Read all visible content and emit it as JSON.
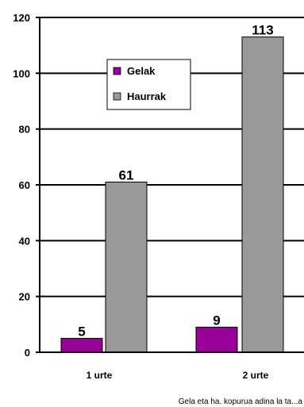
{
  "chart_data": {
    "type": "bar",
    "categories": [
      "1 urte",
      "2 urte"
    ],
    "series": [
      {
        "name": "Gelak",
        "values": [
          5,
          9
        ],
        "color": "#990099"
      },
      {
        "name": "Haurrak",
        "values": [
          61,
          113
        ],
        "color": "#999999"
      }
    ],
    "ylim": [
      0,
      120
    ],
    "yticks": [
      0,
      20,
      40,
      60,
      80,
      100,
      120
    ],
    "grid": true,
    "legend_position": "top-center",
    "data_labels": [
      "5",
      "61",
      "9",
      "113"
    ],
    "source_note": "Gela eta ha. kopurua adina la ta...a"
  }
}
